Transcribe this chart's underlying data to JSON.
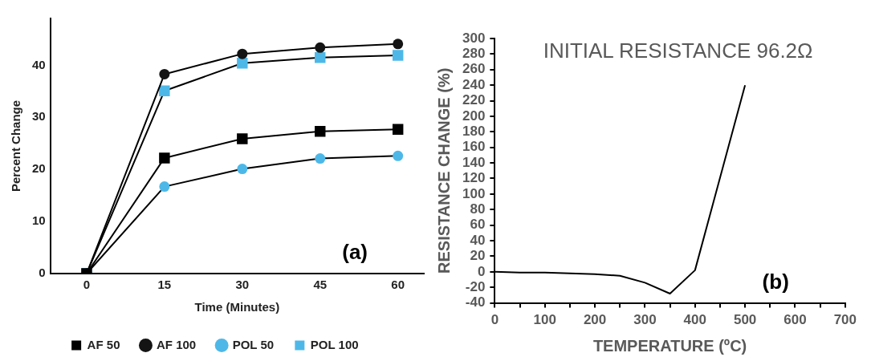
{
  "chart_data": [
    {
      "type": "line",
      "xlabel": "Time (Minutes)",
      "ylabel": "Percent Change",
      "x": [
        0,
        15,
        30,
        45,
        60
      ],
      "xlim": [
        -7,
        65
      ],
      "xticks": [
        0,
        15,
        30,
        45,
        60
      ],
      "ylim": [
        0,
        49
      ],
      "yticks": [
        0,
        10,
        20,
        30,
        40
      ],
      "grid": false,
      "legend": "bottom",
      "annotations": [
        "(a)"
      ],
      "series": [
        {
          "name": "AF 50",
          "color": "#000000",
          "marker": "square",
          "values": [
            0,
            22.2,
            25.9,
            27.3,
            27.7
          ]
        },
        {
          "name": "AF 100",
          "color": "#141414",
          "marker": "circle",
          "values": [
            0,
            38.3,
            42.2,
            43.4,
            44.1
          ]
        },
        {
          "name": "POL 50",
          "color": "#4db8e8",
          "marker": "circle",
          "values": [
            0,
            16.7,
            20.1,
            22.1,
            22.6
          ]
        },
        {
          "name": "POL 100",
          "color": "#4db8e8",
          "marker": "square",
          "values": [
            0,
            35.1,
            40.4,
            41.5,
            41.9
          ]
        }
      ]
    },
    {
      "type": "line",
      "title": "INITIAL RESISTANCE 96.2Ω",
      "xlabel": "TEMPERATURE (ºC)",
      "ylabel": "RESISTANCE CHANGE (%)",
      "x": [
        0,
        50,
        100,
        150,
        200,
        250,
        300,
        350,
        400,
        500
      ],
      "xlim": [
        0,
        700
      ],
      "xticks": [
        0,
        {
          "value": 50,
          "label": null
        },
        100,
        {
          "value": 150,
          "label": null
        },
        200,
        {
          "value": 250,
          "label": null
        },
        300,
        {
          "value": 350,
          "label": null
        },
        400,
        {
          "value": 450,
          "label": null
        },
        500,
        {
          "value": 550,
          "label": null
        },
        600,
        {
          "value": 650,
          "label": null
        },
        700
      ],
      "ylim": [
        -40,
        300
      ],
      "yticks": [
        -40,
        -20,
        0,
        20,
        40,
        60,
        80,
        100,
        120,
        140,
        160,
        180,
        200,
        220,
        240,
        260,
        280,
        300
      ],
      "grid": false,
      "legend": false,
      "annotations": [
        "(b)"
      ],
      "series": [
        {
          "color": "#000000",
          "marker": "none",
          "values": [
            0,
            -1,
            -1,
            -2,
            -3,
            -5,
            -14,
            -28,
            2,
            240
          ]
        }
      ]
    }
  ]
}
